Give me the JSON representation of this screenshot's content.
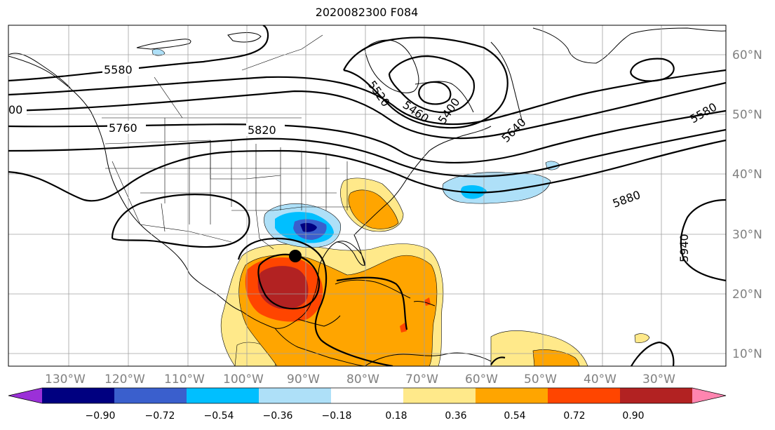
{
  "title": "2020082300 F084",
  "longitude_labels": [
    "130°W",
    "120°W",
    "110°W",
    "100°W",
    "90°W",
    "80°W",
    "70°W",
    "60°W",
    "50°W",
    "40°W",
    "30°W"
  ],
  "latitude_labels": [
    "60°N",
    "50°N",
    "40°N",
    "30°N",
    "20°N",
    "10°N"
  ],
  "contour_labels": [
    "5580",
    "5760",
    "5820",
    "5520",
    "5460",
    "5400",
    "5640",
    "5580",
    "5880",
    "5940",
    "00"
  ],
  "colorbar": {
    "tick_labels": [
      "−0.90",
      "−0.72",
      "−0.54",
      "−0.36",
      "−0.18",
      "0.18",
      "0.36",
      "0.54",
      "0.72",
      "0.90"
    ],
    "colors": [
      "#9b30d8",
      "#000080",
      "#3a5fcd",
      "#00bfff",
      "#aee0f8",
      "#ffffff",
      "#ffe98a",
      "#ffa500",
      "#ff4500",
      "#b22222",
      "#ff85b0"
    ]
  },
  "marker": "storm-position-dot"
}
